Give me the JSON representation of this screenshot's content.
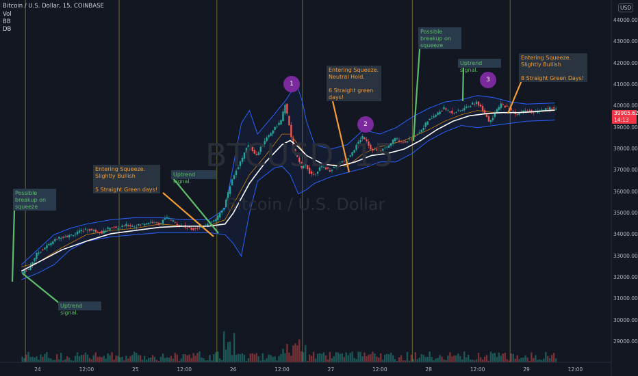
{
  "header": {
    "symbol_line": "Bitcoin / U.S. Dollar, 15, COINBASE",
    "indicators": [
      "Vol",
      "BB",
      "DB"
    ],
    "currency": "USD"
  },
  "watermark": {
    "big": "BTCUSD, 15",
    "small": "Bitcoin / U.S. Dollar"
  },
  "last_price": {
    "value": "39905.62",
    "countdown": "14:13"
  },
  "colors": {
    "background": "#131722",
    "up": "#26a69a",
    "down": "#ef5350",
    "bb_band": "#2962ff",
    "basis": "#ff9800",
    "ma": "#ffffff",
    "vline": "#6b6a2c",
    "note_green": "#5ebd6a",
    "note_orange": "#f39d33",
    "marker": "#7b2a9d",
    "price_tag": "#f23645"
  },
  "chart_data": {
    "type": "candlestick",
    "title": "Bitcoin / U.S. Dollar, 15, COINBASE",
    "ylim": [
      28800,
      44600
    ],
    "y_ticks": [
      29000,
      30000,
      31000,
      32000,
      33000,
      34000,
      35000,
      36000,
      37000,
      38000,
      39000,
      40000,
      41000,
      42000,
      43000,
      44000
    ],
    "y_tick_labels": [
      "29000.00",
      "30000.00",
      "31000.00",
      "32000.00",
      "33000.00",
      "34000.00",
      "35000.00",
      "36000.00",
      "37000.00",
      "38000.00",
      "39000.00",
      "40000.00",
      "41000.00",
      "42000.00",
      "43000.00",
      "44000.00"
    ],
    "x_ticks": [
      {
        "label": "24",
        "hour": 0
      },
      {
        "label": "12:00",
        "hour": 12
      },
      {
        "label": "25",
        "hour": 24
      },
      {
        "label": "12:00",
        "hour": 36
      },
      {
        "label": "26",
        "hour": 48
      },
      {
        "label": "12:00",
        "hour": 60
      },
      {
        "label": "27",
        "hour": 72
      },
      {
        "label": "12:00",
        "hour": 84
      },
      {
        "label": "28",
        "hour": 96
      },
      {
        "label": "12:00",
        "hour": 108
      },
      {
        "label": "29",
        "hour": 120
      },
      {
        "label": "12:00",
        "hour": 132
      }
    ],
    "price_path": [
      [
        -4,
        32200
      ],
      [
        -2,
        32400
      ],
      [
        0,
        33100
      ],
      [
        2,
        33400
      ],
      [
        4,
        33700
      ],
      [
        6,
        33900
      ],
      [
        8,
        33950
      ],
      [
        10,
        34100
      ],
      [
        12,
        34250
      ],
      [
        14,
        34200
      ],
      [
        16,
        34100
      ],
      [
        18,
        34350
      ],
      [
        20,
        34300
      ],
      [
        22,
        34450
      ],
      [
        24,
        34400
      ],
      [
        26,
        34500
      ],
      [
        28,
        34600
      ],
      [
        30,
        34500
      ],
      [
        32,
        34800
      ],
      [
        34,
        34550
      ],
      [
        36,
        34400
      ],
      [
        38,
        34250
      ],
      [
        40,
        34350
      ],
      [
        42,
        34500
      ],
      [
        44,
        34700
      ],
      [
        46,
        35300
      ],
      [
        48,
        36600
      ],
      [
        50,
        37400
      ],
      [
        52,
        38200
      ],
      [
        54,
        37700
      ],
      [
        56,
        38400
      ],
      [
        58,
        38900
      ],
      [
        60,
        39300
      ],
      [
        61,
        40100
      ],
      [
        62,
        39100
      ],
      [
        63,
        38000
      ],
      [
        64,
        37600
      ],
      [
        65,
        37100
      ],
      [
        66,
        37300
      ],
      [
        67,
        36900
      ],
      [
        68,
        36800
      ],
      [
        70,
        37200
      ],
      [
        72,
        37000
      ],
      [
        74,
        37300
      ],
      [
        76,
        37500
      ],
      [
        78,
        38000
      ],
      [
        80,
        38600
      ],
      [
        81,
        38400
      ],
      [
        82,
        38000
      ],
      [
        84,
        37900
      ],
      [
        86,
        38100
      ],
      [
        88,
        38500
      ],
      [
        90,
        38300
      ],
      [
        92,
        38500
      ],
      [
        94,
        38800
      ],
      [
        96,
        39300
      ],
      [
        98,
        39600
      ],
      [
        100,
        39900
      ],
      [
        102,
        39700
      ],
      [
        104,
        39800
      ],
      [
        106,
        40000
      ],
      [
        108,
        40200
      ],
      [
        110,
        39700
      ],
      [
        111,
        39300
      ],
      [
        112,
        39500
      ],
      [
        114,
        40100
      ],
      [
        116,
        39900
      ],
      [
        118,
        39600
      ],
      [
        120,
        39800
      ],
      [
        122,
        39700
      ],
      [
        124,
        39800
      ],
      [
        126,
        39900
      ],
      [
        127,
        39905.62
      ]
    ],
    "basis_path": [
      [
        -4,
        32500
      ],
      [
        0,
        32700
      ],
      [
        6,
        33400
      ],
      [
        12,
        34000
      ],
      [
        18,
        34200
      ],
      [
        24,
        34300
      ],
      [
        30,
        34500
      ],
      [
        36,
        34400
      ],
      [
        42,
        34400
      ],
      [
        46,
        34700
      ],
      [
        48,
        35400
      ],
      [
        52,
        36800
      ],
      [
        56,
        37700
      ],
      [
        60,
        38700
      ],
      [
        62,
        38700
      ],
      [
        64,
        38200
      ],
      [
        66,
        37700
      ],
      [
        70,
        37300
      ],
      [
        76,
        37200
      ],
      [
        80,
        37800
      ],
      [
        84,
        38100
      ],
      [
        90,
        38400
      ],
      [
        96,
        38900
      ],
      [
        100,
        39300
      ],
      [
        104,
        39600
      ],
      [
        108,
        39800
      ],
      [
        112,
        39700
      ],
      [
        116,
        39700
      ],
      [
        120,
        39700
      ],
      [
        127,
        39800
      ]
    ],
    "ma_path": [
      [
        -4,
        32300
      ],
      [
        0,
        32700
      ],
      [
        6,
        33300
      ],
      [
        12,
        33700
      ],
      [
        18,
        34050
      ],
      [
        24,
        34200
      ],
      [
        30,
        34350
      ],
      [
        36,
        34400
      ],
      [
        42,
        34400
      ],
      [
        46,
        34500
      ],
      [
        48,
        35000
      ],
      [
        52,
        36400
      ],
      [
        56,
        37400
      ],
      [
        60,
        38200
      ],
      [
        62,
        38400
      ],
      [
        64,
        38100
      ],
      [
        66,
        37700
      ],
      [
        70,
        37300
      ],
      [
        74,
        37200
      ],
      [
        78,
        37400
      ],
      [
        82,
        37700
      ],
      [
        86,
        37800
      ],
      [
        90,
        38000
      ],
      [
        94,
        38400
      ],
      [
        98,
        38900
      ],
      [
        102,
        39300
      ],
      [
        106,
        39550
      ],
      [
        110,
        39650
      ],
      [
        114,
        39700
      ],
      [
        118,
        39700
      ],
      [
        122,
        39750
      ],
      [
        127,
        39820
      ]
    ],
    "bb_upper_path": [
      [
        -4,
        32600
      ],
      [
        0,
        33300
      ],
      [
        4,
        34000
      ],
      [
        8,
        34300
      ],
      [
        12,
        34500
      ],
      [
        18,
        34700
      ],
      [
        24,
        34800
      ],
      [
        30,
        34800
      ],
      [
        36,
        34700
      ],
      [
        42,
        34700
      ],
      [
        46,
        35200
      ],
      [
        48,
        37200
      ],
      [
        50,
        39200
      ],
      [
        52,
        39800
      ],
      [
        54,
        38700
      ],
      [
        58,
        39600
      ],
      [
        61,
        40300
      ],
      [
        63,
        40900
      ],
      [
        64,
        40800
      ],
      [
        65,
        40200
      ],
      [
        66,
        39300
      ],
      [
        68,
        38200
      ],
      [
        72,
        38000
      ],
      [
        76,
        38200
      ],
      [
        80,
        38900
      ],
      [
        84,
        38700
      ],
      [
        88,
        39000
      ],
      [
        92,
        39500
      ],
      [
        96,
        39900
      ],
      [
        100,
        40200
      ],
      [
        104,
        40300
      ],
      [
        108,
        40500
      ],
      [
        112,
        40400
      ],
      [
        116,
        40200
      ],
      [
        120,
        40100
      ],
      [
        127,
        40150
      ]
    ],
    "bb_lower_path": [
      [
        -4,
        31900
      ],
      [
        0,
        32200
      ],
      [
        4,
        32600
      ],
      [
        8,
        33300
      ],
      [
        12,
        33700
      ],
      [
        18,
        33900
      ],
      [
        24,
        34000
      ],
      [
        30,
        34100
      ],
      [
        36,
        34100
      ],
      [
        42,
        34100
      ],
      [
        46,
        34000
      ],
      [
        48,
        33600
      ],
      [
        50,
        33000
      ],
      [
        52,
        35000
      ],
      [
        54,
        36500
      ],
      [
        58,
        37100
      ],
      [
        60,
        37200
      ],
      [
        62,
        36800
      ],
      [
        64,
        35900
      ],
      [
        66,
        36100
      ],
      [
        68,
        36400
      ],
      [
        72,
        36700
      ],
      [
        76,
        36900
      ],
      [
        80,
        37100
      ],
      [
        84,
        37400
      ],
      [
        88,
        37400
      ],
      [
        92,
        37800
      ],
      [
        96,
        38400
      ],
      [
        100,
        38800
      ],
      [
        104,
        39100
      ],
      [
        108,
        39000
      ],
      [
        112,
        39100
      ],
      [
        116,
        39200
      ],
      [
        120,
        39300
      ],
      [
        127,
        39350
      ]
    ],
    "vertical_lines_hours": [
      -3,
      20,
      44,
      65,
      92,
      116
    ],
    "annotations": [
      {
        "text": "Possible\nbreakup on\nsqueeze",
        "color": "green"
      },
      {
        "text": "Uptrend signal.",
        "color": "green"
      },
      {
        "text": "Entering Squeeze.\nSlightly Bullish\n\n5 Straight Green days!",
        "color": "orange"
      },
      {
        "text": "Uptrend signal.",
        "color": "green"
      },
      {
        "text": "Entering Squeeze.\nNeutral Hold.\n\n6 Straight green\ndays!",
        "color": "orange"
      },
      {
        "text": "Possible\nbreakup on\nsqueeze",
        "color": "green"
      },
      {
        "text": "Uptrend signal.",
        "color": "green"
      },
      {
        "text": "Entering Squeeze.\nSlightly Bullish\n\n8 Straight Green Days!",
        "color": "orange"
      }
    ],
    "markers": [
      "1",
      "2",
      "3"
    ]
  }
}
